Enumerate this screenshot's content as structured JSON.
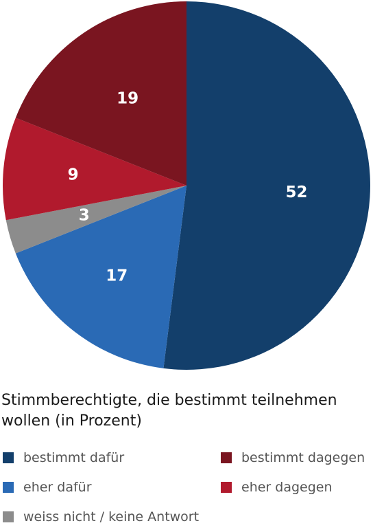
{
  "chart_data": {
    "type": "pie",
    "categories": [
      "bestimmt dafür",
      "eher dafür",
      "weiss nicht / keine Antwort",
      "eher dagegen",
      "bestimmt dagegen"
    ],
    "values": [
      52,
      17,
      3,
      9,
      19
    ],
    "colors": [
      "#133f6b",
      "#2a6ab5",
      "#8c8c8c",
      "#b11a2d",
      "#7a1520"
    ],
    "label_color": "#ffffff",
    "start": "12 o'clock",
    "direction": "clockwise",
    "legend_position": "bottom"
  },
  "caption": "Stimmberechtigte, die bestimmt teilnehmen wollen (in Prozent)",
  "legend": [
    {
      "label": "bestimmt dafür",
      "color": "#133f6b"
    },
    {
      "label": "bestimmt dagegen",
      "color": "#7a1520"
    },
    {
      "label": "eher dafür",
      "color": "#2a6ab5"
    },
    {
      "label": "eher dagegen",
      "color": "#b11a2d"
    },
    {
      "label": "weiss nicht / keine Antwort",
      "color": "#8c8c8c"
    }
  ]
}
